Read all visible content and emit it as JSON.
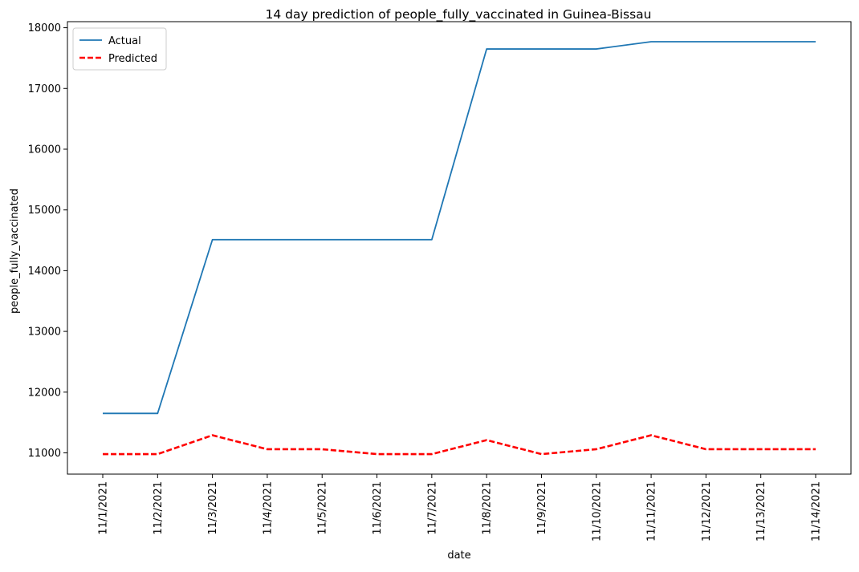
{
  "chart_data": {
    "type": "line",
    "title": "14 day prediction of people_fully_vaccinated in Guinea-Bissau",
    "xlabel": "date",
    "ylabel": "people_fully_vaccinated",
    "x": [
      "11/1/2021",
      "11/2/2021",
      "11/3/2021",
      "11/4/2021",
      "11/5/2021",
      "11/6/2021",
      "11/7/2021",
      "11/8/2021",
      "11/9/2021",
      "11/10/2021",
      "11/11/2021",
      "11/12/2021",
      "11/13/2021",
      "11/14/2021"
    ],
    "yticks": [
      11000,
      12000,
      13000,
      14000,
      15000,
      16000,
      17000,
      18000
    ],
    "ylim": [
      10650,
      18100
    ],
    "grid": false,
    "legend_position": "top-left",
    "series": [
      {
        "name": "Actual",
        "color": "#1f77b4",
        "style": "solid",
        "values": [
          11650,
          11650,
          14510,
          14510,
          14510,
          14510,
          14510,
          17650,
          17650,
          17650,
          17770,
          17770,
          17770,
          17770
        ]
      },
      {
        "name": "Predicted",
        "color": "#ff0000",
        "style": "dashed",
        "values": [
          10980,
          10980,
          11290,
          11060,
          11060,
          10980,
          10980,
          11210,
          10980,
          11060,
          11290,
          11060,
          11060,
          11060
        ]
      }
    ]
  }
}
